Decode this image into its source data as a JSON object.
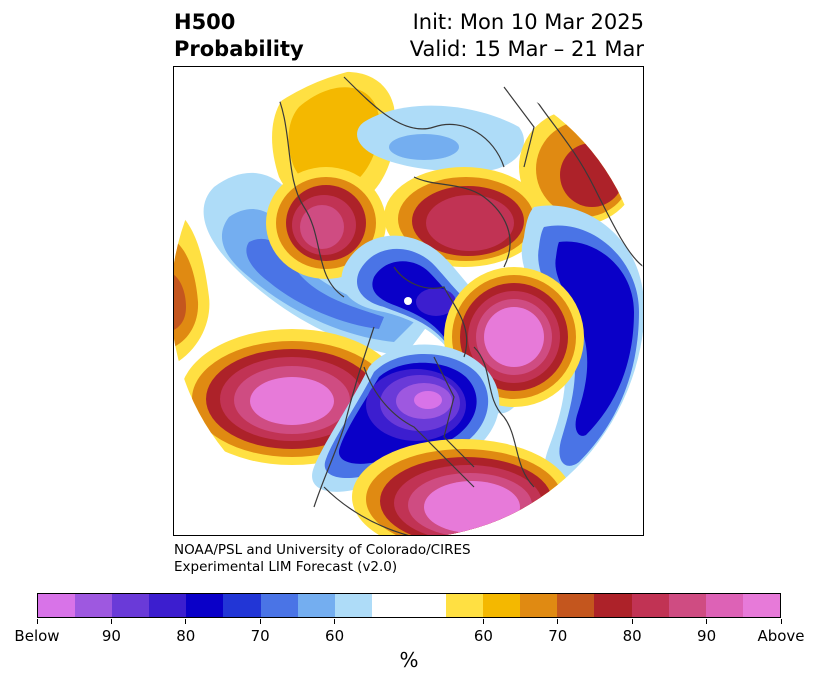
{
  "title": {
    "left_line1": "H500",
    "left_line2": "Probability",
    "right_line1": "Init: Mon 10 Mar 2025",
    "right_line2": "Valid: 15 Mar – 21 Mar"
  },
  "credit": {
    "line1": "NOAA/PSL and University of Colorado/CIRES",
    "line2": "Experimental LIM Forecast (v2.0)"
  },
  "colorbar": {
    "colors": [
      "#d873e8",
      "#9e58e0",
      "#6a3ad8",
      "#3c1ecf",
      "#0a00c8",
      "#2236d6",
      "#4a74e6",
      "#74aef0",
      "#aedcf8",
      "#ffffff",
      "#ffffff",
      "#ffe042",
      "#f4b800",
      "#e08a12",
      "#c4561e",
      "#ad2229",
      "#c13354",
      "#cf4c82",
      "#dd62b6",
      "#e77ad9"
    ],
    "tick_labels": [
      "Below",
      "90",
      "80",
      "70",
      "60",
      "60",
      "70",
      "80",
      "90",
      "Above"
    ],
    "unit": "%"
  },
  "map": {
    "projection": "north-polar-stereographic",
    "legend_semantics": "cool colors = below-normal 500-hPa height probability; warm colors = above-normal"
  }
}
